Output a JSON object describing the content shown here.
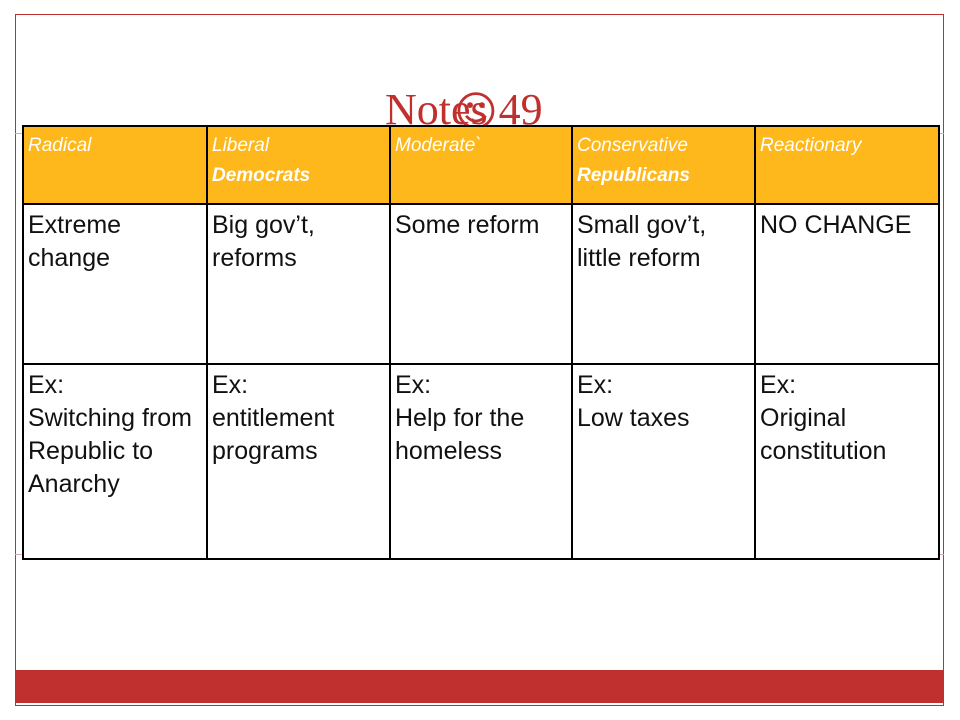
{
  "slide": {
    "title": "Notes 49",
    "title_glyph": "☺"
  },
  "table": {
    "headers": [
      {
        "label": "Radical",
        "sub": ""
      },
      {
        "label": "Liberal",
        "sub": "Democrats"
      },
      {
        "label": "Moderate`",
        "sub": ""
      },
      {
        "label": "Conservative",
        "sub": "Republicans"
      },
      {
        "label": "Reactionary",
        "sub": ""
      }
    ],
    "descriptions": [
      "Extreme change",
      "Big gov’t, reforms",
      "Some reform",
      "Small gov’t, little reform",
      "NO CHANGE"
    ],
    "examples": [
      {
        "prefix": "Ex:",
        "text": "Switching from Republic to Anarchy"
      },
      {
        "prefix": "Ex:",
        "text": "entitlement programs"
      },
      {
        "prefix": "Ex:",
        "text": "Help for the homeless"
      },
      {
        "prefix": "Ex:",
        "text": "Low taxes"
      },
      {
        "prefix": "Ex:",
        "text": "Original constitution"
      }
    ]
  },
  "colors": {
    "accent": "#c0302e",
    "header_fill": "#ffb81c",
    "header_text": "#ffffff"
  }
}
